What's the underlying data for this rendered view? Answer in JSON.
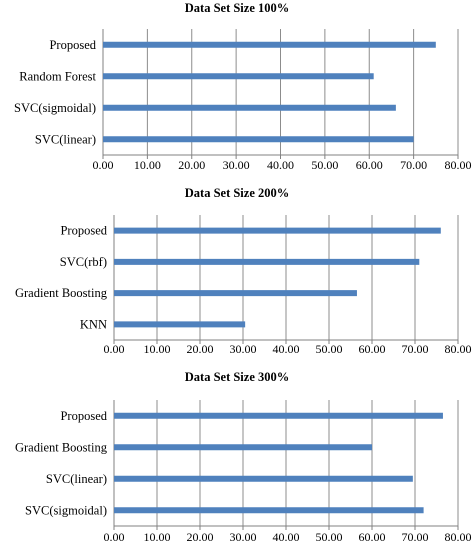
{
  "chart_data": [
    {
      "type": "bar",
      "orientation": "horizontal",
      "title": "Data Set Size 100%",
      "categories": [
        "Proposed",
        "Random Forest",
        "SVC(sigmoidal)",
        "SVC(linear)"
      ],
      "values": [
        75.0,
        61.0,
        66.0,
        70.0
      ],
      "xlim": [
        0,
        80
      ],
      "xticks": [
        "0.00",
        "10.00",
        "20.00",
        "30.00",
        "40.00",
        "50.00",
        "60.00",
        "70.00",
        "80.00"
      ],
      "grid": true,
      "bar_color": "#4f81bd"
    },
    {
      "type": "bar",
      "orientation": "horizontal",
      "title": "Data Set Size 200%",
      "categories": [
        "Proposed",
        "SVC(rbf)",
        "Gradient Boosting",
        "KNN"
      ],
      "values": [
        76.0,
        71.0,
        56.5,
        30.5
      ],
      "xlim": [
        0,
        80
      ],
      "xticks": [
        "0.00",
        "10.00",
        "20.00",
        "30.00",
        "40.00",
        "50.00",
        "60.00",
        "70.00",
        "80.00"
      ],
      "grid": true,
      "bar_color": "#4f81bd"
    },
    {
      "type": "bar",
      "orientation": "horizontal",
      "title": "Data Set Size 300%",
      "categories": [
        "Proposed",
        "Gradient Boosting",
        "SVC(linear)",
        "SVC(sigmoidal)"
      ],
      "values": [
        76.5,
        60.0,
        69.5,
        72.0
      ],
      "xlim": [
        0,
        80
      ],
      "xticks": [
        "0.00",
        "10.00",
        "20.00",
        "30.00",
        "40.00",
        "50.00",
        "60.00",
        "70.00",
        "80.00"
      ],
      "grid": true,
      "bar_color": "#4f81bd"
    }
  ]
}
